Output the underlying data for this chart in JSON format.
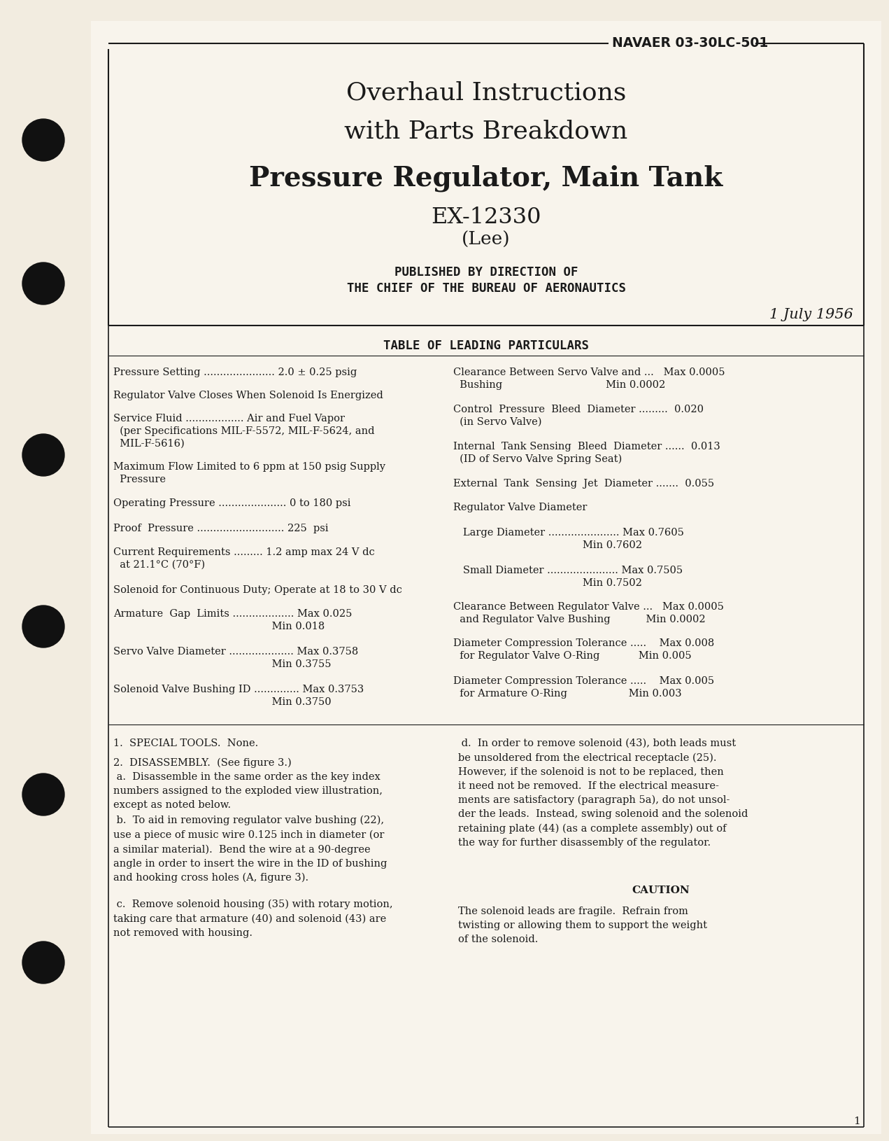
{
  "page_bg": "#f2ece0",
  "inner_bg": "#f8f4ec",
  "border_color": "#1a1a1a",
  "text_color": "#1a1a1a",
  "navaer": "NAVAER 03-30LC-501",
  "title_line1": "Overhaul Instructions",
  "title_line2": "with Parts Breakdown",
  "title_line3": "Pressure Regulator, Main Tank",
  "title_line4": "EX-12330",
  "title_line5": "(Lee)",
  "published_line1": "PUBLISHED BY DIRECTION OF",
  "published_line2": "THE CHIEF OF THE BUREAU OF AERONAUTICS",
  "date": "1 July 1956",
  "table_heading": "TABLE OF LEADING PARTICULARS",
  "page_num": "1"
}
